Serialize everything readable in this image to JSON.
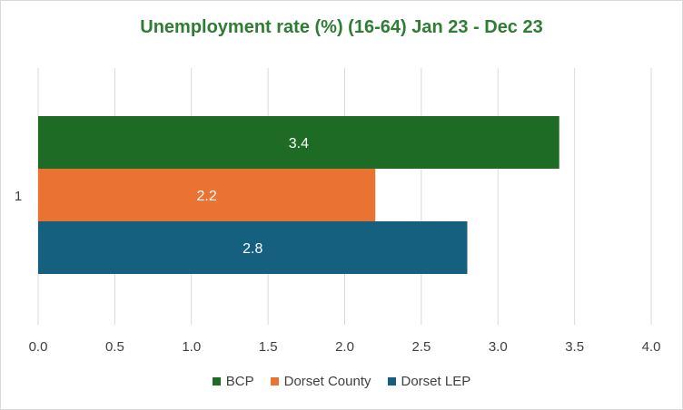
{
  "chart_data": {
    "type": "bar",
    "orientation": "horizontal",
    "title": "Unemployment rate (%) (16-64) Jan 23 - Dec 23",
    "categories": [
      "1"
    ],
    "series": [
      {
        "name": "BCP",
        "values": [
          3.4
        ],
        "color": "#1e6b26"
      },
      {
        "name": "Dorset County",
        "values": [
          2.2
        ],
        "color": "#ea7232"
      },
      {
        "name": "Dorset LEP",
        "values": [
          2.8
        ],
        "color": "#16607f"
      }
    ],
    "xlim": [
      0,
      4
    ],
    "x_ticks": [
      "0.0",
      "0.5",
      "1.0",
      "1.5",
      "2.0",
      "2.5",
      "3.0",
      "3.5",
      "4.0"
    ],
    "data_labels": [
      "3.4",
      "2.2",
      "2.8"
    ],
    "grid": "vertical",
    "legend_position": "bottom"
  }
}
